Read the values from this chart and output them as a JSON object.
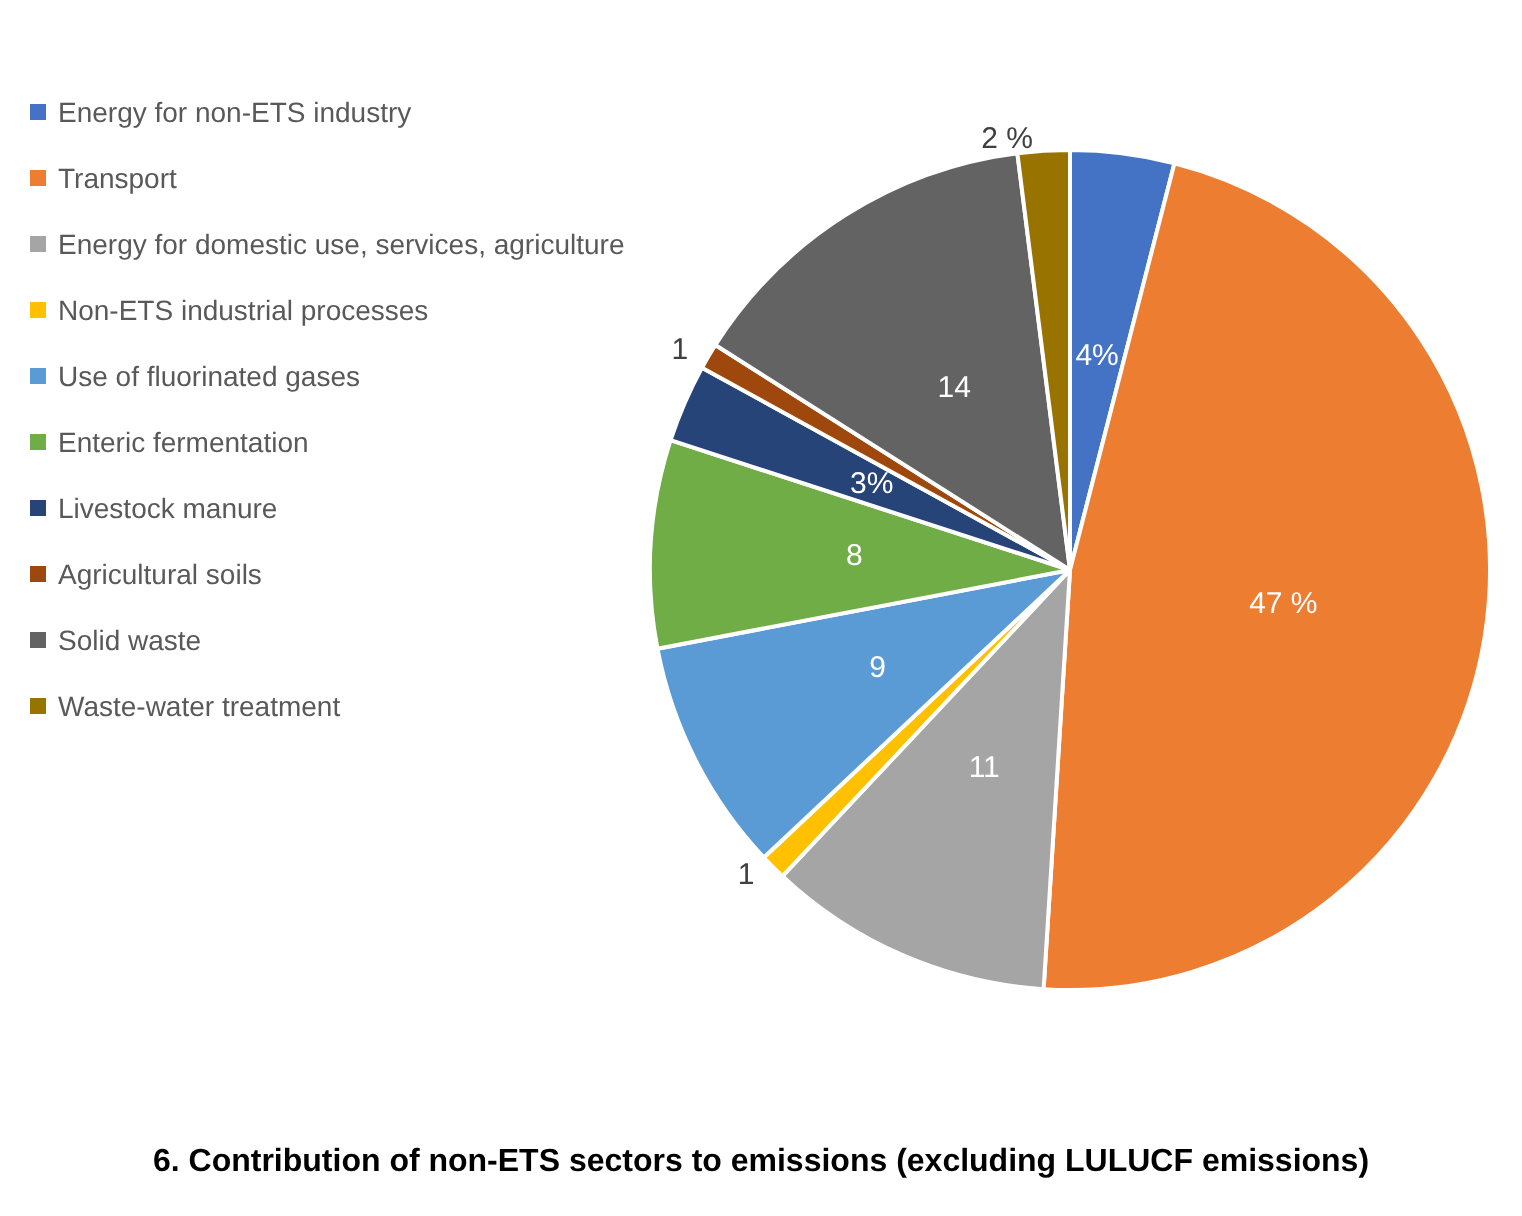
{
  "chart_data": {
    "type": "pie",
    "categories": [
      "Energy for non-ETS industry",
      "Transport",
      "Energy for domestic use, services, agriculture",
      "Non-ETS industrial processes",
      "Use of fluorinated gases",
      "Enteric fermentation",
      "Livestock manure",
      "Agricultural soils",
      "Solid waste",
      "Waste-water treatment"
    ],
    "values": [
      4,
      47,
      11,
      1,
      9,
      8,
      3,
      1,
      14,
      2
    ],
    "value_labels": [
      "4%",
      "47 %",
      "11",
      "1",
      "9",
      "8",
      "3%",
      "1",
      "14",
      "2 %"
    ],
    "colors": [
      "#4472c4",
      "#ed7d31",
      "#a5a5a5",
      "#ffc000",
      "#5b9bd5",
      "#70ad47",
      "#264478",
      "#9e480e",
      "#636363",
      "#997300"
    ],
    "legend": "left",
    "annotations": [
      "6. Contribution of non-ETS sectors to emissions (excluding LULUCF emissions)"
    ]
  }
}
